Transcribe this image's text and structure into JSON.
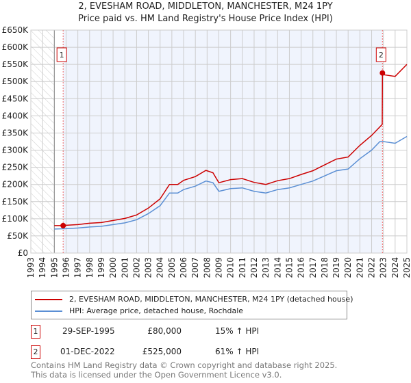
{
  "chart_data": {
    "type": "line",
    "title": "2, EVESHAM ROAD, MIDDLETON, MANCHESTER, M24 1PY",
    "subtitle": "Price paid vs. HM Land Registry's House Price Index (HPI)",
    "xlim": [
      1993,
      2025
    ],
    "ylim": [
      0,
      650000
    ],
    "yticks": [
      "£0",
      "£50K",
      "£100K",
      "£150K",
      "£200K",
      "£250K",
      "£300K",
      "£350K",
      "£400K",
      "£450K",
      "£500K",
      "£550K",
      "£600K",
      "£650K"
    ],
    "xticks": [
      "1993",
      "1994",
      "1995",
      "1996",
      "1997",
      "1998",
      "1999",
      "2000",
      "2001",
      "2002",
      "2003",
      "2004",
      "2005",
      "2006",
      "2007",
      "2008",
      "2009",
      "2010",
      "2011",
      "2012",
      "2013",
      "2014",
      "2015",
      "2016",
      "2017",
      "2018",
      "2019",
      "2020",
      "2021",
      "2022",
      "2023",
      "2024",
      "2025"
    ],
    "series": [
      {
        "name": "2, EVESHAM ROAD, MIDDLETON, MANCHESTER, M24 1PY (detached house)",
        "color": "#cc0000",
        "x": [
          1995,
          1995.75,
          1996,
          1997,
          1998,
          1999,
          2000,
          2001,
          2002,
          2003,
          2004,
          2004.8,
          2005.5,
          2006,
          2007,
          2007.9,
          2008.5,
          2009,
          2010,
          2011,
          2012,
          2013,
          2014,
          2015,
          2016,
          2017,
          2018,
          2019,
          2020,
          2021,
          2022,
          2022.9,
          2022.92,
          2023,
          2024,
          2025
        ],
        "y": [
          80000,
          80000,
          81000,
          83000,
          87000,
          89000,
          95000,
          101000,
          111000,
          131000,
          158000,
          200000,
          200000,
          212000,
          223000,
          241000,
          234000,
          205000,
          214000,
          217000,
          206000,
          200000,
          211000,
          217000,
          229000,
          240000,
          257000,
          274000,
          280000,
          314000,
          343000,
          375000,
          525000,
          520000,
          515000,
          550000
        ]
      },
      {
        "name": "HPI: Average price, detached house, Rochdale",
        "color": "#5b8fd4",
        "x": [
          1995,
          1996,
          1997,
          1998,
          1999,
          2000,
          2001,
          2002,
          2003,
          2004,
          2004.8,
          2005.5,
          2006,
          2007,
          2007.9,
          2008.5,
          2009,
          2010,
          2011,
          2012,
          2013,
          2014,
          2015,
          2016,
          2017,
          2018,
          2019,
          2020,
          2021,
          2022,
          2022.7,
          2023,
          2024,
          2025
        ],
        "y": [
          70000,
          71000,
          73000,
          76000,
          78000,
          83000,
          88000,
          97000,
          115000,
          138000,
          175000,
          175000,
          185000,
          195000,
          210000,
          205000,
          180000,
          188000,
          190000,
          180000,
          175000,
          185000,
          190000,
          200000,
          210000,
          225000,
          240000,
          245000,
          275000,
          300000,
          325000,
          325000,
          320000,
          340000
        ]
      }
    ],
    "sales": [
      {
        "label": "1",
        "x": 1995.75,
        "y": 80000,
        "date": "29-SEP-1995",
        "price": "£80,000",
        "hpi": "15% ↑ HPI"
      },
      {
        "label": "2",
        "x": 2022.92,
        "y": 525000,
        "date": "01-DEC-2022",
        "price": "£525,000",
        "hpi": "61% ↑ HPI"
      }
    ],
    "grid": true,
    "legend": "below"
  },
  "footer": {
    "line1": "Contains HM Land Registry data © Crown copyright and database right 2025.",
    "line2": "This data is licensed under the Open Government Licence v3.0."
  }
}
